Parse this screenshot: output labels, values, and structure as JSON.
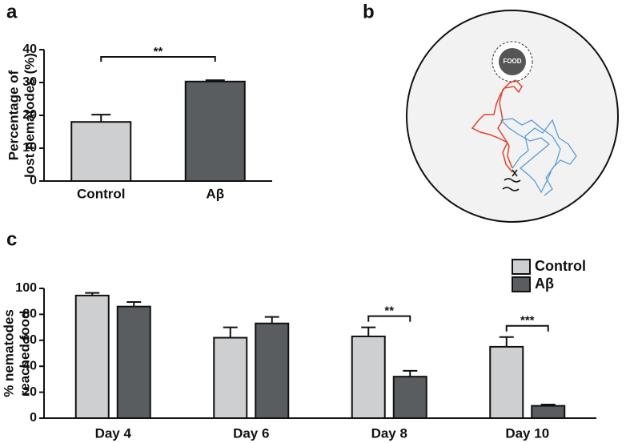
{
  "panel_labels": [
    "a",
    "b",
    "c"
  ],
  "trajectory": {
    "food_label": "FOOD"
  },
  "chart_data": [
    {
      "type": "bar",
      "categories": [
        "Control",
        "Aβ"
      ],
      "values": [
        18,
        30.3
      ],
      "errors": [
        2.2,
        0.4
      ],
      "colors": [
        "#cdcfd1",
        "#5a5d60"
      ],
      "y_label": [
        "Percentage of",
        "lost nematodes (%)"
      ],
      "ylim": [
        0,
        40
      ],
      "yticks": [
        0,
        10,
        20,
        30,
        40
      ],
      "annotations": [
        {
          "label": "**",
          "between": [
            0,
            1
          ]
        }
      ]
    },
    {
      "type": "grouped-bar",
      "categories": [
        "Day 4",
        "Day 6",
        "Day 8",
        "Day 10"
      ],
      "series": [
        {
          "name": "Control",
          "color": "#cdcfd1",
          "values": [
            94.5,
            62,
            63,
            55
          ],
          "errors": [
            2,
            8,
            7,
            7.5
          ]
        },
        {
          "name": "Aβ",
          "color": "#5a5d60",
          "values": [
            86,
            73,
            32,
            9.5
          ],
          "errors": [
            3.5,
            5,
            4.5,
            1
          ]
        }
      ],
      "y_label": [
        "% nematodes",
        "reached food"
      ],
      "ylim": [
        0,
        100
      ],
      "yticks": [
        0,
        20,
        40,
        60,
        80,
        100
      ],
      "annotations": [
        {
          "label": "**",
          "category": 2
        },
        {
          "label": "***",
          "category": 3
        }
      ]
    }
  ]
}
